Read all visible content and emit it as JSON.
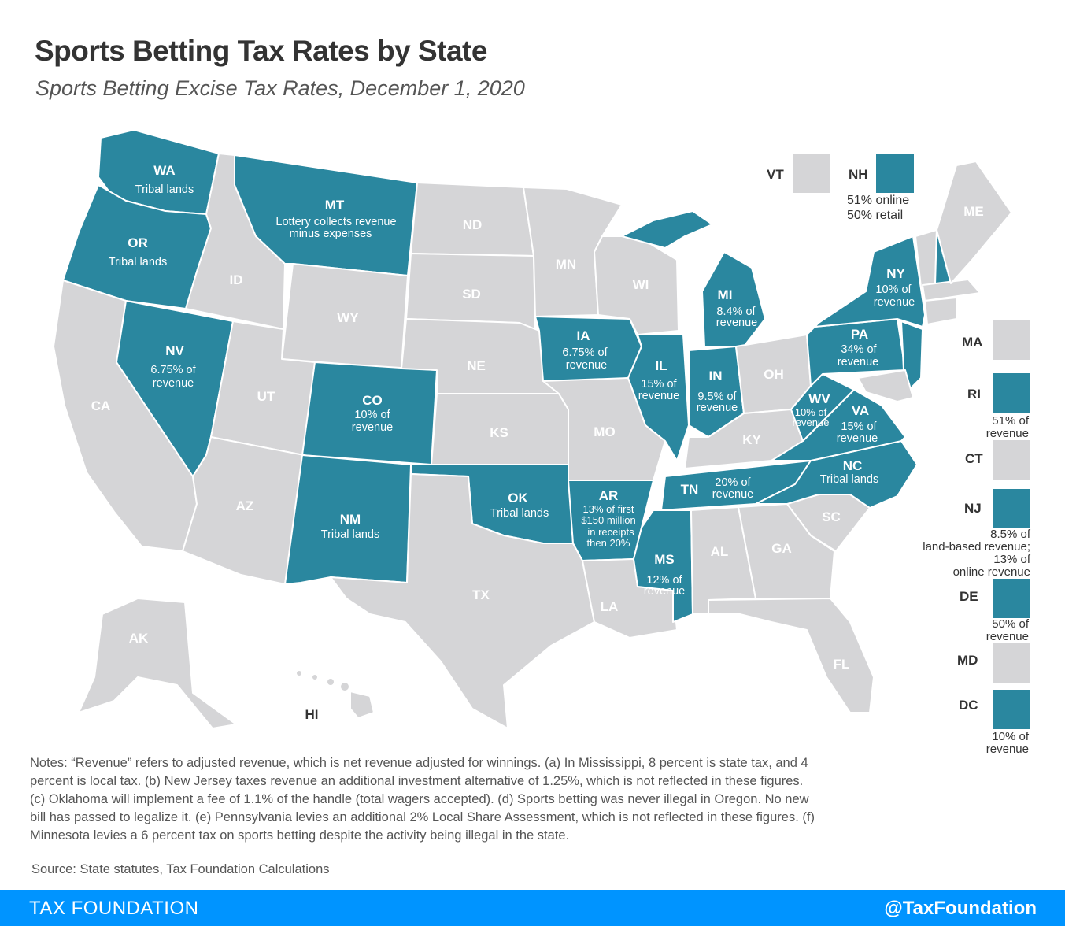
{
  "title": "Sports Betting Tax Rates by State",
  "subtitle": "Sports Betting Excise Tax Rates, December 1, 2020",
  "colors": {
    "legal": "#2a879f",
    "not_legal": "#d5d5d7",
    "footer": "#0094ff"
  },
  "states": {
    "WA": {
      "abbr": "WA",
      "note1": "Tribal lands"
    },
    "OR": {
      "abbr": "OR",
      "note1": "Tribal lands"
    },
    "CA": {
      "abbr": "CA"
    },
    "ID": {
      "abbr": "ID"
    },
    "NV": {
      "abbr": "NV",
      "note1": "6.75% of",
      "note2": "revenue"
    },
    "MT": {
      "abbr": "MT",
      "note1": "Lottery collects revenue",
      "note2": "minus expenses"
    },
    "WY": {
      "abbr": "WY"
    },
    "UT": {
      "abbr": "UT"
    },
    "AZ": {
      "abbr": "AZ"
    },
    "CO": {
      "abbr": "CO",
      "note1": "10% of",
      "note2": "revenue"
    },
    "NM": {
      "abbr": "NM",
      "note1": "Tribal lands"
    },
    "ND": {
      "abbr": "ND"
    },
    "SD": {
      "abbr": "SD"
    },
    "NE": {
      "abbr": "NE"
    },
    "KS": {
      "abbr": "KS"
    },
    "OK": {
      "abbr": "OK",
      "note1": "Tribal lands"
    },
    "TX": {
      "abbr": "TX"
    },
    "MN": {
      "abbr": "MN"
    },
    "IA": {
      "abbr": "IA",
      "note1": "6.75% of",
      "note2": "revenue"
    },
    "MO": {
      "abbr": "MO"
    },
    "AR": {
      "abbr": "AR",
      "note1": "13% of first",
      "note2": "$150 million",
      "note3": "in receipts",
      "note4": "then 20%"
    },
    "LA": {
      "abbr": "LA"
    },
    "WI": {
      "abbr": "WI"
    },
    "IL": {
      "abbr": "IL",
      "note1": "15% of",
      "note2": "revenue"
    },
    "MI": {
      "abbr": "MI",
      "note1": "8.4% of",
      "note2": "revenue"
    },
    "IN": {
      "abbr": "IN",
      "note1": "9.5% of",
      "note2": "revenue"
    },
    "OH": {
      "abbr": "OH"
    },
    "KY": {
      "abbr": "KY"
    },
    "TN": {
      "abbr": "TN",
      "note1": "20% of",
      "note2": "revenue"
    },
    "MS": {
      "abbr": "MS",
      "note1": "12% of",
      "note2": "revenue"
    },
    "AL": {
      "abbr": "AL"
    },
    "GA": {
      "abbr": "GA"
    },
    "FL": {
      "abbr": "FL"
    },
    "SC": {
      "abbr": "SC"
    },
    "NC": {
      "abbr": "NC",
      "note1": "Tribal lands"
    },
    "VA": {
      "abbr": "VA",
      "note1": "15% of",
      "note2": "revenue"
    },
    "WV": {
      "abbr": "WV",
      "note1": "10% of",
      "note2": "revenue"
    },
    "PA": {
      "abbr": "PA",
      "note1": "34% of",
      "note2": "revenue"
    },
    "NY": {
      "abbr": "NY",
      "note1": "10% of",
      "note2": "revenue"
    },
    "ME": {
      "abbr": "ME"
    },
    "AK": {
      "abbr": "AK"
    },
    "HI": {
      "abbr": "HI"
    }
  },
  "legend": {
    "VT": {
      "abbr": "VT"
    },
    "NH": {
      "abbr": "NH",
      "note1": "51% online",
      "note2": "50% retail"
    },
    "MA": {
      "abbr": "MA"
    },
    "RI": {
      "abbr": "RI",
      "note1": "51% of",
      "note2": "revenue"
    },
    "CT": {
      "abbr": "CT"
    },
    "NJ": {
      "abbr": "NJ",
      "note1": "8.5% of",
      "note2": "land-based revenue;",
      "note3": "13% of",
      "note4": "online revenue"
    },
    "DE": {
      "abbr": "DE",
      "note1": "50% of",
      "note2": "revenue"
    },
    "MD": {
      "abbr": "MD"
    },
    "DC": {
      "abbr": "DC",
      "note1": "10% of",
      "note2": "revenue"
    }
  },
  "notes": "Notes: “Revenue” refers to adjusted revenue, which is net revenue adjusted for winnings. (a) In Mississippi, 8 percent is state tax, and 4 percent is local tax. (b) New Jersey taxes revenue an additional investment alternative of 1.25%, which is not reflected in these figures. (c) Oklahoma will implement a fee of 1.1% of the handle (total wagers accepted). (d) Sports betting was never illegal in Oregon. No new bill has passed to legalize it. (e) Pennsylvania levies an additional 2% Local Share Assessment, which is not reflected in these figures. (f) Minnesota levies a 6 percent tax on sports betting despite the activity being illegal in the state.",
  "source": "Source: State statutes, Tax Foundation Calculations",
  "footer": {
    "left": "TAX FOUNDATION",
    "right": "@TaxFoundation"
  }
}
